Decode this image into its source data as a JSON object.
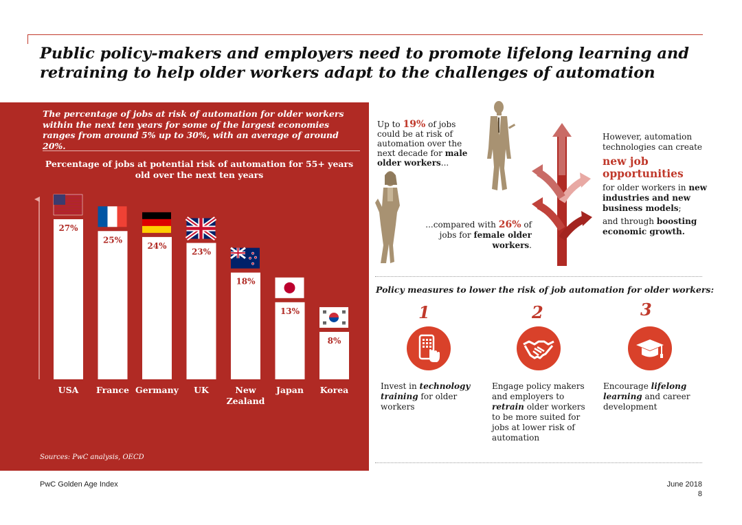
{
  "title": "Public policy-makers and employers need to promote lifelong learning and retraining to help older workers adapt to the challenges of automation",
  "intro": "The percentage of jobs at risk of automation for older workers within the next ten years for some of the largest economies ranges from around 5% up to 30%, with an average of around 20%.",
  "sources": "Sources: PwC analysis, OECD",
  "chart_data": {
    "type": "bar",
    "title": "Percentage of jobs at potential risk of automation for 55+ years old over the next ten years",
    "categories": [
      "USA",
      "France",
      "Germany",
      "UK",
      "New Zealand",
      "Japan",
      "Korea"
    ],
    "category_lines": [
      [
        "USA"
      ],
      [
        "France"
      ],
      [
        "Germany"
      ],
      [
        "UK"
      ],
      [
        "New",
        "Zealand"
      ],
      [
        "Japan"
      ],
      [
        "Korea"
      ]
    ],
    "values": [
      27,
      25,
      24,
      23,
      18,
      13,
      8
    ],
    "value_labels": [
      "27%",
      "25%",
      "24%",
      "23%",
      "18%",
      "13%",
      "8%"
    ],
    "flags": [
      "usa-flag",
      "france-flag",
      "germany-flag",
      "uk-flag",
      "new-zealand-flag",
      "japan-flag",
      "korea-flag"
    ],
    "ylim": [
      0,
      27
    ],
    "bar_color": "#ffffff",
    "label_color": "#b02a24"
  },
  "gender": {
    "male_pre": "Up to ",
    "male_pct": "19%",
    "male_mid": " of jobs could be at risk of automation over the next decade for ",
    "male_bold": "male older workers",
    "male_end": "...",
    "female_pre": "...compared with ",
    "female_pct": "26%",
    "female_mid": " of jobs for ",
    "female_bold": "female older workers",
    "female_end": "."
  },
  "opportunities": {
    "intro": "However, automation technologies can create",
    "highlight": "new job opportunities",
    "line1_pre": "for older workers in ",
    "line1_bold": "new industries and new business models",
    "line1_end": ";",
    "line2_pre": "and through ",
    "line2_bold": "boosting economic growth."
  },
  "policy": {
    "title": "Policy measures to lower the risk of job automation for older workers:",
    "items": [
      {
        "number": "1",
        "icon": "touch-tablet-icon",
        "pre": "Invest in ",
        "bold": "technology training",
        "post": " for older workers"
      },
      {
        "number": "2",
        "icon": "handshake-icon",
        "pre": "Engage policy makers and employers to ",
        "bold": "retrain",
        "post": " older workers to be more suited for jobs at lower risk of automation"
      },
      {
        "number": "3",
        "icon": "graduation-cap-icon",
        "pre": "Encourage ",
        "bold": "lifelong learning",
        "post": " and career development"
      }
    ]
  },
  "footer": {
    "left": "PwC Golden Age Index",
    "date": "June 2018",
    "page": "8"
  },
  "colors": {
    "brand_red": "#b02a24",
    "accent_red": "#c0392b",
    "figure_tan": "#a89272",
    "icon_orange": "#d9412a"
  }
}
